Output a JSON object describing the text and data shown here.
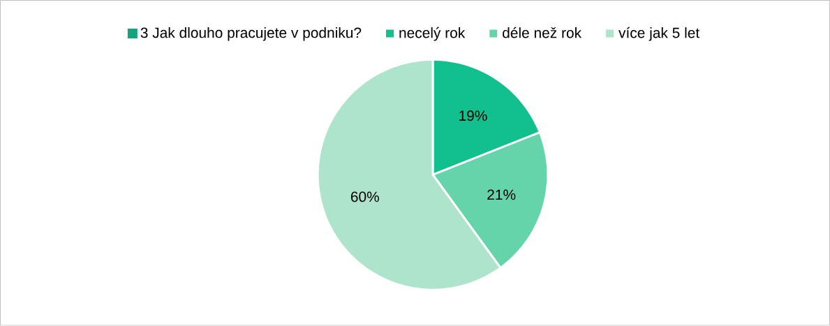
{
  "chart_data": {
    "type": "pie",
    "categories": [
      "3 Jak dlouho pracujete v podniku?",
      "necelý rok",
      "déle než rok",
      "více jak 5 let"
    ],
    "values": [
      0,
      19,
      21,
      60
    ],
    "colors": [
      "#13a37f",
      "#12c08e",
      "#66d4aa",
      "#aee4cc"
    ],
    "value_labels": [
      null,
      "19%",
      "21%",
      "60%"
    ],
    "legend": "top"
  }
}
